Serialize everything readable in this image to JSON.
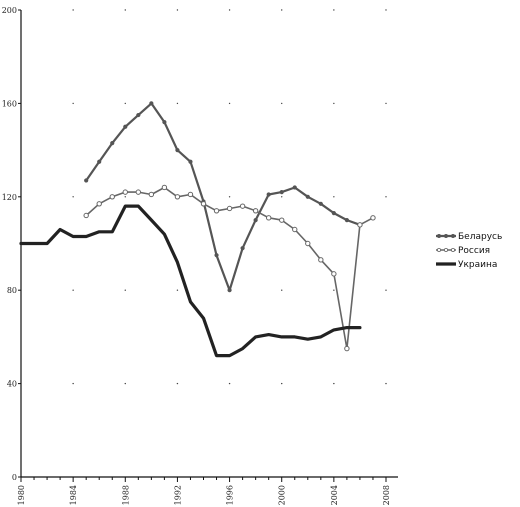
{
  "chart_data": {
    "type": "line",
    "title": "",
    "xlabel": "",
    "ylabel": "",
    "xlim": [
      1980,
      2008
    ],
    "ylim": [
      0,
      200
    ],
    "x_ticks": [
      1980,
      1984,
      1988,
      1992,
      1996,
      2000,
      2004,
      2008
    ],
    "x_tick_labels": [
      "1980",
      "1984",
      "1988",
      "1992",
      "1996",
      "2000",
      "2004",
      "2008"
    ],
    "y_ticks": [
      0,
      40,
      80,
      120,
      160,
      200
    ],
    "y_tick_labels": [
      "0",
      "40",
      "80",
      "120",
      "160",
      "200"
    ],
    "grid": "dotted",
    "legend_position": "right",
    "series": [
      {
        "name": "Беларусь",
        "color": "#555555",
        "marker": "small-circle",
        "x": [
          1985,
          1986,
          1987,
          1988,
          1989,
          1990,
          1991,
          1992,
          1993,
          1994,
          1995,
          1996,
          1997,
          1998,
          1999,
          2000,
          2001,
          2002,
          2003,
          2004,
          2005,
          2006
        ],
        "values": [
          127,
          135,
          143,
          150,
          155,
          160,
          152,
          140,
          135,
          118,
          95,
          80,
          98,
          110,
          121,
          122,
          124,
          120,
          117,
          113,
          110,
          108
        ]
      },
      {
        "name": "Россия",
        "color": "#666666",
        "marker": "open-circle",
        "x": [
          1985,
          1986,
          1987,
          1988,
          1989,
          1990,
          1991,
          1992,
          1993,
          1994,
          1995,
          1996,
          1997,
          1998,
          1999,
          2000,
          2001,
          2002,
          2003,
          2004,
          2005,
          2006,
          2007
        ],
        "values": [
          112,
          117,
          120,
          122,
          122,
          121,
          124,
          120,
          121,
          117,
          114,
          115,
          116,
          114,
          111,
          110,
          106,
          100,
          93,
          87,
          55,
          108,
          111
        ]
      },
      {
        "name": "Украина",
        "color": "#222222",
        "marker": "none",
        "x": [
          1980,
          1981,
          1982,
          1983,
          1984,
          1985,
          1986,
          1987,
          1988,
          1989,
          1990,
          1991,
          1992,
          1993,
          1994,
          1995,
          1996,
          1997,
          1998,
          1999,
          2000,
          2001,
          2002,
          2003,
          2004,
          2005,
          2006
        ],
        "values": [
          100,
          100,
          100,
          106,
          103,
          103,
          105,
          105,
          116,
          116,
          110,
          104,
          92,
          75,
          68,
          52,
          52,
          55,
          60,
          61,
          60,
          60,
          59,
          60,
          63,
          64,
          64
        ]
      }
    ]
  }
}
